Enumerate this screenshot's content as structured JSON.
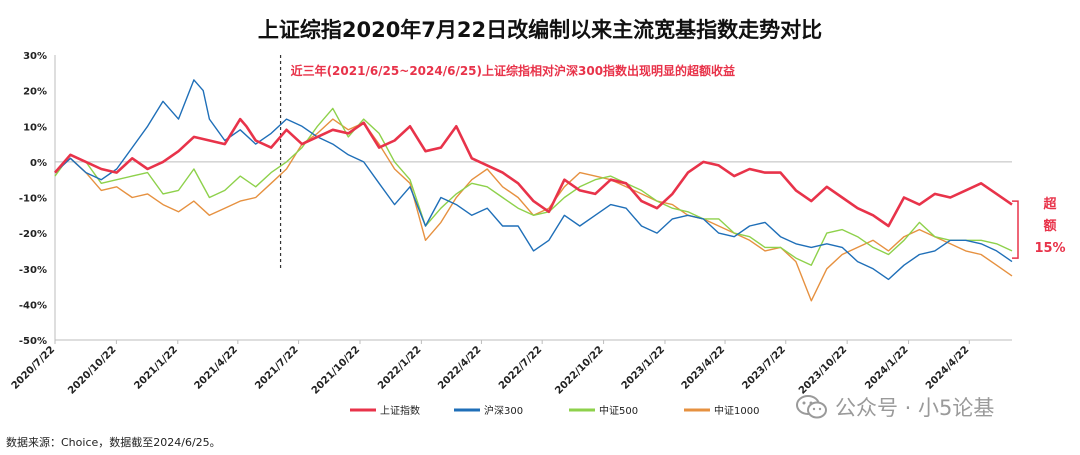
{
  "title": "上证综指2020年7月22日改编制以来主流宽基指数走势对比",
  "source": "数据来源：Choice，数据截至2024/6/25。",
  "watermark": "公众号 · 小5论基",
  "chart_data": {
    "type": "line",
    "title": "上证综指2020年7月22日改编制以来主流宽基指数走势对比",
    "y_unit": "%",
    "ylim": [
      -50,
      30
    ],
    "yticks": [
      "30%",
      "20%",
      "10%",
      "0%",
      "-10%",
      "-20%",
      "-30%",
      "-40%",
      "-50%"
    ],
    "xlim": [
      "2020-07-22",
      "2024-06-25"
    ],
    "xticks": [
      "2020/7/22",
      "2020/10/22",
      "2021/1/22",
      "2021/4/22",
      "2021/7/22",
      "2021/10/22",
      "2022/1/22",
      "2022/4/22",
      "2022/7/22",
      "2022/10/22",
      "2023/1/22",
      "2023/4/22",
      "2023/7/22",
      "2023/10/22",
      "2024/1/22",
      "2024/4/22"
    ],
    "grid": false,
    "legend_position": "bottom",
    "annotation_text": "近三年(2021/6/25~2024/6/25)上证综指相对沪深300指数出现明显的超额收益",
    "annotation_date": "2021-06-25",
    "excess_label": [
      "超",
      "额",
      "15%"
    ],
    "series": [
      {
        "name": "上证指数",
        "color": "#e8334a",
        "width": 2.6,
        "values": [
          [
            0,
            -3
          ],
          [
            5,
            2
          ],
          [
            10,
            0
          ],
          [
            15,
            -2
          ],
          [
            20,
            -3
          ],
          [
            25,
            1
          ],
          [
            30,
            -2
          ],
          [
            35,
            0
          ],
          [
            40,
            3
          ],
          [
            45,
            7
          ],
          [
            50,
            6
          ],
          [
            55,
            5
          ],
          [
            60,
            12
          ],
          [
            62,
            10
          ],
          [
            65,
            6
          ],
          [
            70,
            4
          ],
          [
            75,
            9
          ],
          [
            80,
            5
          ],
          [
            85,
            7
          ],
          [
            90,
            9
          ],
          [
            95,
            8
          ],
          [
            100,
            11
          ],
          [
            105,
            4
          ],
          [
            110,
            6
          ],
          [
            115,
            10
          ],
          [
            120,
            3
          ],
          [
            125,
            4
          ],
          [
            130,
            10
          ],
          [
            135,
            1
          ],
          [
            140,
            -1
          ],
          [
            145,
            -3
          ],
          [
            150,
            -6
          ],
          [
            155,
            -11
          ],
          [
            160,
            -14
          ],
          [
            165,
            -5
          ],
          [
            170,
            -8
          ],
          [
            175,
            -9
          ],
          [
            180,
            -5
          ],
          [
            185,
            -6
          ],
          [
            190,
            -11
          ],
          [
            195,
            -13
          ],
          [
            200,
            -9
          ],
          [
            205,
            -3
          ],
          [
            210,
            0
          ],
          [
            215,
            -1
          ],
          [
            220,
            -4
          ],
          [
            225,
            -2
          ],
          [
            230,
            -3
          ],
          [
            235,
            -3
          ],
          [
            240,
            -8
          ],
          [
            245,
            -11
          ],
          [
            250,
            -7
          ],
          [
            255,
            -10
          ],
          [
            260,
            -13
          ],
          [
            265,
            -15
          ],
          [
            270,
            -18
          ],
          [
            275,
            -10
          ],
          [
            280,
            -12
          ],
          [
            285,
            -9
          ],
          [
            290,
            -10
          ],
          [
            295,
            -8
          ],
          [
            300,
            -6
          ],
          [
            305,
            -9
          ],
          [
            310,
            -12
          ]
        ]
      },
      {
        "name": "沪深300",
        "color": "#1f6fb8",
        "width": 1.4,
        "values": [
          [
            0,
            -3
          ],
          [
            5,
            1
          ],
          [
            10,
            -3
          ],
          [
            15,
            -5
          ],
          [
            20,
            -2
          ],
          [
            25,
            4
          ],
          [
            30,
            10
          ],
          [
            35,
            17
          ],
          [
            40,
            12
          ],
          [
            45,
            23
          ],
          [
            48,
            20
          ],
          [
            50,
            12
          ],
          [
            55,
            6
          ],
          [
            60,
            9
          ],
          [
            65,
            5
          ],
          [
            70,
            8
          ],
          [
            75,
            12
          ],
          [
            80,
            10
          ],
          [
            85,
            7
          ],
          [
            90,
            5
          ],
          [
            95,
            2
          ],
          [
            100,
            0
          ],
          [
            105,
            -6
          ],
          [
            110,
            -12
          ],
          [
            115,
            -7
          ],
          [
            120,
            -18
          ],
          [
            125,
            -10
          ],
          [
            130,
            -12
          ],
          [
            135,
            -15
          ],
          [
            140,
            -13
          ],
          [
            145,
            -18
          ],
          [
            150,
            -18
          ],
          [
            155,
            -25
          ],
          [
            160,
            -22
          ],
          [
            165,
            -15
          ],
          [
            170,
            -18
          ],
          [
            175,
            -15
          ],
          [
            180,
            -12
          ],
          [
            185,
            -13
          ],
          [
            190,
            -18
          ],
          [
            195,
            -20
          ],
          [
            200,
            -16
          ],
          [
            205,
            -15
          ],
          [
            210,
            -16
          ],
          [
            215,
            -20
          ],
          [
            220,
            -21
          ],
          [
            225,
            -18
          ],
          [
            230,
            -17
          ],
          [
            235,
            -21
          ],
          [
            240,
            -23
          ],
          [
            245,
            -24
          ],
          [
            250,
            -23
          ],
          [
            255,
            -24
          ],
          [
            260,
            -28
          ],
          [
            265,
            -30
          ],
          [
            270,
            -33
          ],
          [
            275,
            -29
          ],
          [
            280,
            -26
          ],
          [
            285,
            -25
          ],
          [
            290,
            -22
          ],
          [
            295,
            -22
          ],
          [
            300,
            -23
          ],
          [
            305,
            -25
          ],
          [
            310,
            -28
          ]
        ]
      },
      {
        "name": "中证500",
        "color": "#8ed14b",
        "width": 1.4,
        "values": [
          [
            0,
            -4
          ],
          [
            5,
            2
          ],
          [
            10,
            0
          ],
          [
            15,
            -6
          ],
          [
            20,
            -5
          ],
          [
            25,
            -4
          ],
          [
            30,
            -3
          ],
          [
            35,
            -9
          ],
          [
            40,
            -8
          ],
          [
            45,
            -2
          ],
          [
            50,
            -10
          ],
          [
            55,
            -8
          ],
          [
            60,
            -4
          ],
          [
            65,
            -7
          ],
          [
            70,
            -3
          ],
          [
            75,
            0
          ],
          [
            80,
            4
          ],
          [
            85,
            10
          ],
          [
            90,
            15
          ],
          [
            95,
            7
          ],
          [
            100,
            12
          ],
          [
            105,
            8
          ],
          [
            110,
            0
          ],
          [
            115,
            -5
          ],
          [
            120,
            -18
          ],
          [
            125,
            -13
          ],
          [
            130,
            -9
          ],
          [
            135,
            -6
          ],
          [
            140,
            -7
          ],
          [
            145,
            -10
          ],
          [
            150,
            -13
          ],
          [
            155,
            -15
          ],
          [
            160,
            -14
          ],
          [
            165,
            -10
          ],
          [
            170,
            -7
          ],
          [
            175,
            -5
          ],
          [
            180,
            -4
          ],
          [
            185,
            -6
          ],
          [
            190,
            -8
          ],
          [
            195,
            -11
          ],
          [
            200,
            -13
          ],
          [
            205,
            -14
          ],
          [
            210,
            -16
          ],
          [
            215,
            -16
          ],
          [
            220,
            -20
          ],
          [
            225,
            -21
          ],
          [
            230,
            -24
          ],
          [
            235,
            -24
          ],
          [
            240,
            -27
          ],
          [
            245,
            -29
          ],
          [
            250,
            -20
          ],
          [
            255,
            -19
          ],
          [
            260,
            -21
          ],
          [
            265,
            -24
          ],
          [
            270,
            -26
          ],
          [
            275,
            -22
          ],
          [
            280,
            -17
          ],
          [
            285,
            -21
          ],
          [
            290,
            -22
          ],
          [
            295,
            -22
          ],
          [
            300,
            -22
          ],
          [
            305,
            -23
          ],
          [
            310,
            -25
          ]
        ]
      },
      {
        "name": "中证1000",
        "color": "#e69140",
        "width": 1.4,
        "values": [
          [
            0,
            -3
          ],
          [
            5,
            1
          ],
          [
            10,
            -3
          ],
          [
            15,
            -8
          ],
          [
            20,
            -7
          ],
          [
            25,
            -10
          ],
          [
            30,
            -9
          ],
          [
            35,
            -12
          ],
          [
            40,
            -14
          ],
          [
            45,
            -11
          ],
          [
            50,
            -15
          ],
          [
            55,
            -13
          ],
          [
            60,
            -11
          ],
          [
            65,
            -10
          ],
          [
            70,
            -6
          ],
          [
            75,
            -2
          ],
          [
            80,
            5
          ],
          [
            85,
            8
          ],
          [
            90,
            12
          ],
          [
            95,
            9
          ],
          [
            100,
            11
          ],
          [
            105,
            5
          ],
          [
            110,
            -2
          ],
          [
            115,
            -6
          ],
          [
            120,
            -22
          ],
          [
            125,
            -17
          ],
          [
            130,
            -10
          ],
          [
            135,
            -5
          ],
          [
            140,
            -2
          ],
          [
            145,
            -7
          ],
          [
            150,
            -10
          ],
          [
            155,
            -15
          ],
          [
            160,
            -13
          ],
          [
            165,
            -7
          ],
          [
            170,
            -3
          ],
          [
            175,
            -4
          ],
          [
            180,
            -5
          ],
          [
            185,
            -7
          ],
          [
            190,
            -9
          ],
          [
            195,
            -11
          ],
          [
            200,
            -12
          ],
          [
            205,
            -15
          ],
          [
            210,
            -16
          ],
          [
            215,
            -18
          ],
          [
            220,
            -20
          ],
          [
            225,
            -22
          ],
          [
            230,
            -25
          ],
          [
            235,
            -24
          ],
          [
            240,
            -28
          ],
          [
            245,
            -39
          ],
          [
            250,
            -30
          ],
          [
            255,
            -26
          ],
          [
            260,
            -24
          ],
          [
            265,
            -22
          ],
          [
            270,
            -25
          ],
          [
            275,
            -21
          ],
          [
            280,
            -19
          ],
          [
            285,
            -21
          ],
          [
            290,
            -23
          ],
          [
            295,
            -25
          ],
          [
            300,
            -26
          ],
          [
            305,
            -29
          ],
          [
            310,
            -32
          ]
        ]
      }
    ]
  }
}
